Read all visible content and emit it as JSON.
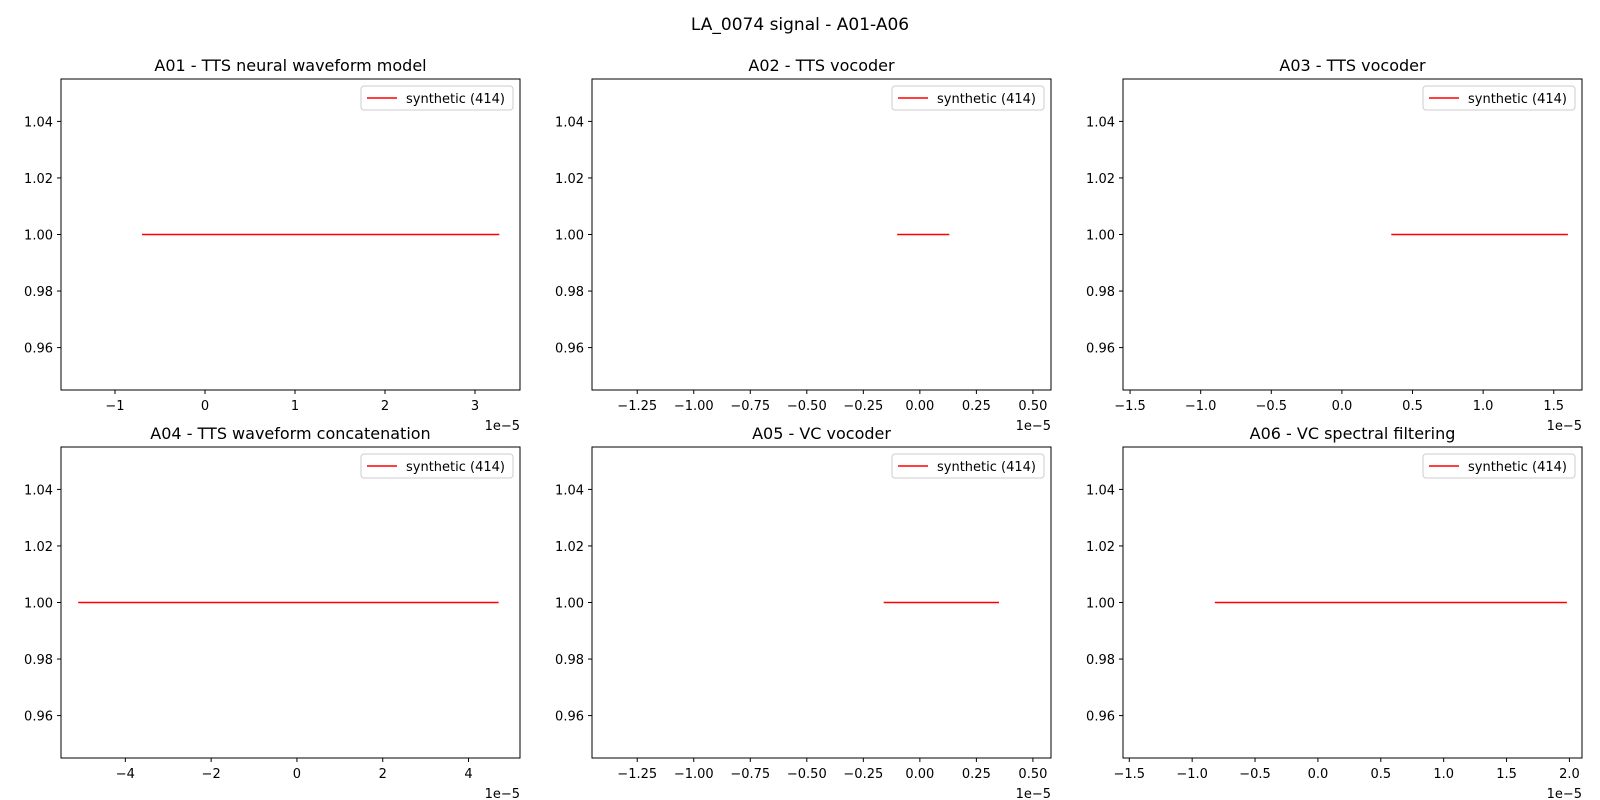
{
  "title": "LA_0074 signal - A01-A06",
  "colors": {
    "line": "#ff0000",
    "axes": "#000000",
    "legend_border": "#cccccc",
    "background": "#ffffff"
  },
  "chart_data": [
    {
      "type": "line",
      "title": "A01 - TTS neural waveform model",
      "xlabel": "",
      "ylabel": "",
      "x_offset_label": "1e−5",
      "xlim": [
        -1.6,
        3.5
      ],
      "ylim": [
        0.945,
        1.055
      ],
      "xticks": [
        -1,
        0,
        1,
        2,
        3
      ],
      "xtick_labels": [
        "−1",
        "0",
        "1",
        "2",
        "3"
      ],
      "yticks": [
        0.96,
        0.98,
        1.0,
        1.02,
        1.04
      ],
      "ytick_labels": [
        "0.96",
        "0.98",
        "1.00",
        "1.02",
        "1.04"
      ],
      "grid": false,
      "legend": "top-right",
      "series": [
        {
          "name": "synthetic (414)",
          "x": [
            -0.7,
            3.27
          ],
          "y": [
            1.0,
            1.0
          ]
        }
      ]
    },
    {
      "type": "line",
      "title": "A02 - TTS vocoder",
      "xlabel": "",
      "ylabel": "",
      "x_offset_label": "1e−5",
      "xlim": [
        -1.45,
        0.58
      ],
      "ylim": [
        0.945,
        1.055
      ],
      "xticks": [
        -1.25,
        -1.0,
        -0.75,
        -0.5,
        -0.25,
        0.0,
        0.25,
        0.5
      ],
      "xtick_labels": [
        "−1.25",
        "−1.00",
        "−0.75",
        "−0.50",
        "−0.25",
        "0.00",
        "0.25",
        "0.50"
      ],
      "yticks": [
        0.96,
        0.98,
        1.0,
        1.02,
        1.04
      ],
      "ytick_labels": [
        "0.96",
        "0.98",
        "1.00",
        "1.02",
        "1.04"
      ],
      "grid": false,
      "legend": "top-right",
      "series": [
        {
          "name": "synthetic (414)",
          "x": [
            -0.1,
            0.13
          ],
          "y": [
            1.0,
            1.0
          ]
        }
      ]
    },
    {
      "type": "line",
      "title": "A03 - TTS vocoder",
      "xlabel": "",
      "ylabel": "",
      "x_offset_label": "1e−5",
      "xlim": [
        -1.55,
        1.7
      ],
      "ylim": [
        0.945,
        1.055
      ],
      "xticks": [
        -1.5,
        -1.0,
        -0.5,
        0.0,
        0.5,
        1.0,
        1.5
      ],
      "xtick_labels": [
        "−1.5",
        "−1.0",
        "−0.5",
        "0.0",
        "0.5",
        "1.0",
        "1.5"
      ],
      "yticks": [
        0.96,
        0.98,
        1.0,
        1.02,
        1.04
      ],
      "ytick_labels": [
        "0.96",
        "0.98",
        "1.00",
        "1.02",
        "1.04"
      ],
      "grid": false,
      "legend": "top-right",
      "series": [
        {
          "name": "synthetic (414)",
          "x": [
            0.35,
            1.6
          ],
          "y": [
            1.0,
            1.0
          ]
        }
      ]
    },
    {
      "type": "line",
      "title": "A04 - TTS waveform concatenation",
      "xlabel": "",
      "ylabel": "",
      "x_offset_label": "1e−5",
      "xlim": [
        -5.5,
        5.2
      ],
      "ylim": [
        0.945,
        1.055
      ],
      "xticks": [
        -4,
        -2,
        0,
        2,
        4
      ],
      "xtick_labels": [
        "−4",
        "−2",
        "0",
        "2",
        "4"
      ],
      "yticks": [
        0.96,
        0.98,
        1.0,
        1.02,
        1.04
      ],
      "ytick_labels": [
        "0.96",
        "0.98",
        "1.00",
        "1.02",
        "1.04"
      ],
      "grid": false,
      "legend": "top-right",
      "series": [
        {
          "name": "synthetic (414)",
          "x": [
            -5.1,
            4.7
          ],
          "y": [
            1.0,
            1.0
          ]
        }
      ]
    },
    {
      "type": "line",
      "title": "A05 - VC vocoder",
      "xlabel": "",
      "ylabel": "",
      "x_offset_label": "1e−5",
      "xlim": [
        -1.45,
        0.58
      ],
      "ylim": [
        0.945,
        1.055
      ],
      "xticks": [
        -1.25,
        -1.0,
        -0.75,
        -0.5,
        -0.25,
        0.0,
        0.25,
        0.5
      ],
      "xtick_labels": [
        "−1.25",
        "−1.00",
        "−0.75",
        "−0.50",
        "−0.25",
        "0.00",
        "0.25",
        "0.50"
      ],
      "yticks": [
        0.96,
        0.98,
        1.0,
        1.02,
        1.04
      ],
      "ytick_labels": [
        "0.96",
        "0.98",
        "1.00",
        "1.02",
        "1.04"
      ],
      "grid": false,
      "legend": "top-right",
      "series": [
        {
          "name": "synthetic (414)",
          "x": [
            -0.16,
            0.35
          ],
          "y": [
            1.0,
            1.0
          ]
        }
      ]
    },
    {
      "type": "line",
      "title": "A06 - VC spectral filtering",
      "xlabel": "",
      "ylabel": "",
      "x_offset_label": "1e−5",
      "xlim": [
        -1.55,
        2.1
      ],
      "ylim": [
        0.945,
        1.055
      ],
      "xticks": [
        -1.5,
        -1.0,
        -0.5,
        0.0,
        0.5,
        1.0,
        1.5,
        2.0
      ],
      "xtick_labels": [
        "−1.5",
        "−1.0",
        "−0.5",
        "0.0",
        "0.5",
        "1.0",
        "1.5",
        "2.0"
      ],
      "yticks": [
        0.96,
        0.98,
        1.0,
        1.02,
        1.04
      ],
      "ytick_labels": [
        "0.96",
        "0.98",
        "1.00",
        "1.02",
        "1.04"
      ],
      "grid": false,
      "legend": "top-right",
      "series": [
        {
          "name": "synthetic (414)",
          "x": [
            -0.82,
            1.98
          ],
          "y": [
            1.0,
            1.0
          ]
        }
      ]
    }
  ]
}
